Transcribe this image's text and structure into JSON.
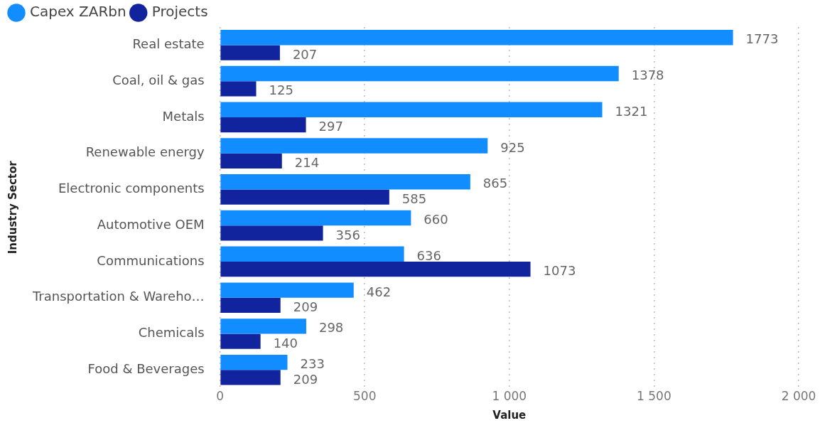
{
  "chart_data": {
    "type": "bar",
    "orientation": "horizontal",
    "xlabel": "Value",
    "ylabel": "Industry Sector",
    "categories": [
      "Real estate",
      "Coal, oil & gas",
      "Metals",
      "Renewable energy",
      "Electronic components",
      "Automotive OEM",
      "Communications",
      "Transportation & Wareho…",
      "Chemicals",
      "Food & Beverages"
    ],
    "series": [
      {
        "name": "Capex ZARbn",
        "color": "#118dff",
        "values": [
          1773,
          1378,
          1321,
          925,
          865,
          660,
          636,
          462,
          298,
          233
        ]
      },
      {
        "name": "Projects",
        "color": "#12239e",
        "values": [
          207,
          125,
          297,
          214,
          585,
          356,
          1073,
          209,
          140,
          209
        ]
      }
    ],
    "xlim": [
      0,
      2000
    ],
    "xticks": [
      0,
      500,
      {
        "value": 1000,
        "label": "1 000"
      },
      {
        "value": 1500,
        "label": "1 500"
      },
      {
        "value": 2000,
        "label": "2 000"
      }
    ],
    "grid": "x",
    "legend": "top left",
    "marker": "circle",
    "data_labels": true
  }
}
